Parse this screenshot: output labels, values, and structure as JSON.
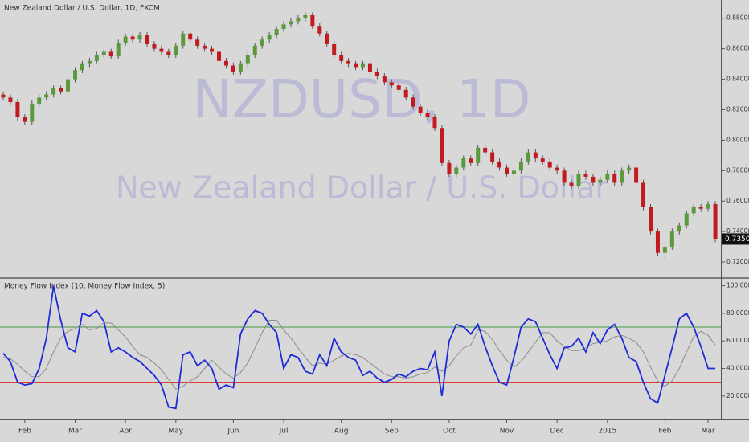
{
  "chart_data": [
    {
      "type": "candlestick",
      "title": "New Zealand Dollar / U.S. Dollar, 1D, FXCM",
      "watermark": [
        "NZDUSD, 1D",
        "New Zealand Dollar / U.S. Dollar"
      ],
      "up_color": "#5b9a3c",
      "down_color": "#c21a1f",
      "ylim": [
        0.71,
        0.892
      ],
      "yticks": [
        {
          "value": 0.72,
          "label": "0.72000"
        },
        {
          "value": 0.74,
          "label": "0.74000"
        },
        {
          "value": 0.76,
          "label": "0.76000"
        },
        {
          "value": 0.78,
          "label": "0.78000"
        },
        {
          "value": 0.8,
          "label": "0.80000"
        },
        {
          "value": 0.82,
          "label": "0.82000"
        },
        {
          "value": 0.84,
          "label": "0.84000"
        },
        {
          "value": 0.86,
          "label": "0.86000"
        },
        {
          "value": 0.88,
          "label": "0.88000"
        }
      ],
      "open": [
        0.83,
        0.828,
        0.825,
        0.815,
        0.812,
        0.824,
        0.828,
        0.83,
        0.834,
        0.832,
        0.84,
        0.846,
        0.85,
        0.852,
        0.856,
        0.858,
        0.855,
        0.864,
        0.868,
        0.866,
        0.869,
        0.863,
        0.86,
        0.858,
        0.856,
        0.862,
        0.87,
        0.866,
        0.862,
        0.86,
        0.858,
        0.852,
        0.849,
        0.845,
        0.85,
        0.856,
        0.862,
        0.866,
        0.869,
        0.873,
        0.876,
        0.878,
        0.88,
        0.882,
        0.875,
        0.87,
        0.863,
        0.856,
        0.852,
        0.85,
        0.848,
        0.85,
        0.845,
        0.842,
        0.838,
        0.836,
        0.833,
        0.828,
        0.822,
        0.818,
        0.815,
        0.808,
        0.785,
        0.778,
        0.782,
        0.788,
        0.785,
        0.795,
        0.792,
        0.786,
        0.782,
        0.778,
        0.78,
        0.786,
        0.792,
        0.788,
        0.786,
        0.782,
        0.78,
        0.772,
        0.77,
        0.778,
        0.776,
        0.772,
        0.774,
        0.778,
        0.772,
        0.78,
        0.782,
        0.772,
        0.756,
        0.74,
        0.726,
        0.73,
        0.74,
        0.744,
        0.752,
        0.756,
        0.755,
        0.758
      ],
      "high": [
        0.832,
        0.83,
        0.827,
        0.817,
        0.826,
        0.83,
        0.832,
        0.836,
        0.836,
        0.842,
        0.848,
        0.852,
        0.854,
        0.858,
        0.86,
        0.86,
        0.866,
        0.87,
        0.87,
        0.871,
        0.871,
        0.865,
        0.862,
        0.86,
        0.864,
        0.872,
        0.872,
        0.868,
        0.864,
        0.862,
        0.86,
        0.854,
        0.851,
        0.852,
        0.858,
        0.864,
        0.868,
        0.871,
        0.875,
        0.878,
        0.88,
        0.882,
        0.884,
        0.884,
        0.877,
        0.872,
        0.865,
        0.858,
        0.854,
        0.852,
        0.852,
        0.852,
        0.847,
        0.844,
        0.84,
        0.838,
        0.835,
        0.83,
        0.824,
        0.82,
        0.817,
        0.81,
        0.787,
        0.784,
        0.79,
        0.79,
        0.797,
        0.797,
        0.794,
        0.788,
        0.784,
        0.782,
        0.788,
        0.794,
        0.794,
        0.79,
        0.788,
        0.784,
        0.782,
        0.774,
        0.78,
        0.78,
        0.778,
        0.776,
        0.78,
        0.78,
        0.782,
        0.784,
        0.784,
        0.774,
        0.758,
        0.742,
        0.732,
        0.742,
        0.746,
        0.754,
        0.758,
        0.758,
        0.76,
        0.76
      ],
      "low": [
        0.826,
        0.823,
        0.813,
        0.81,
        0.81,
        0.822,
        0.826,
        0.828,
        0.83,
        0.83,
        0.838,
        0.844,
        0.848,
        0.85,
        0.854,
        0.853,
        0.853,
        0.862,
        0.864,
        0.864,
        0.861,
        0.858,
        0.856,
        0.854,
        0.854,
        0.86,
        0.864,
        0.86,
        0.858,
        0.856,
        0.85,
        0.847,
        0.843,
        0.843,
        0.848,
        0.854,
        0.86,
        0.864,
        0.867,
        0.871,
        0.874,
        0.876,
        0.878,
        0.873,
        0.868,
        0.861,
        0.854,
        0.85,
        0.848,
        0.846,
        0.846,
        0.843,
        0.84,
        0.836,
        0.834,
        0.831,
        0.826,
        0.82,
        0.816,
        0.813,
        0.806,
        0.783,
        0.776,
        0.776,
        0.78,
        0.783,
        0.783,
        0.79,
        0.784,
        0.78,
        0.776,
        0.776,
        0.778,
        0.784,
        0.786,
        0.784,
        0.78,
        0.778,
        0.77,
        0.768,
        0.768,
        0.774,
        0.77,
        0.77,
        0.772,
        0.77,
        0.77,
        0.778,
        0.77,
        0.754,
        0.738,
        0.724,
        0.722,
        0.728,
        0.738,
        0.742,
        0.75,
        0.753,
        0.753,
        0.733
      ],
      "close": [
        0.828,
        0.825,
        0.815,
        0.812,
        0.824,
        0.828,
        0.83,
        0.834,
        0.832,
        0.84,
        0.846,
        0.85,
        0.852,
        0.856,
        0.858,
        0.855,
        0.864,
        0.868,
        0.866,
        0.869,
        0.863,
        0.86,
        0.858,
        0.856,
        0.862,
        0.87,
        0.866,
        0.862,
        0.86,
        0.858,
        0.852,
        0.849,
        0.845,
        0.85,
        0.856,
        0.862,
        0.866,
        0.869,
        0.873,
        0.876,
        0.878,
        0.88,
        0.882,
        0.875,
        0.87,
        0.863,
        0.856,
        0.852,
        0.85,
        0.848,
        0.85,
        0.845,
        0.842,
        0.838,
        0.836,
        0.833,
        0.828,
        0.822,
        0.818,
        0.815,
        0.808,
        0.785,
        0.778,
        0.782,
        0.788,
        0.785,
        0.795,
        0.792,
        0.786,
        0.782,
        0.778,
        0.78,
        0.786,
        0.792,
        0.788,
        0.786,
        0.782,
        0.78,
        0.772,
        0.77,
        0.778,
        0.776,
        0.772,
        0.774,
        0.778,
        0.772,
        0.78,
        0.782,
        0.772,
        0.756,
        0.74,
        0.726,
        0.73,
        0.74,
        0.744,
        0.752,
        0.756,
        0.755,
        0.758,
        0.73508
      ]
    },
    {
      "type": "line",
      "title": "Money Flow Index (10, Money Flow Index, 5)",
      "categories": [
        null,
        null,
        null,
        "Feb",
        null,
        null,
        null,
        null,
        null,
        null,
        "Mar",
        null,
        null,
        null,
        null,
        null,
        null,
        "Apr",
        null,
        null,
        null,
        null,
        null,
        null,
        "May",
        null,
        null,
        null,
        null,
        null,
        null,
        null,
        "Jun",
        null,
        null,
        null,
        null,
        null,
        null,
        "Jul",
        null,
        null,
        null,
        null,
        null,
        null,
        null,
        "Aug",
        null,
        null,
        null,
        null,
        null,
        null,
        "Sep",
        null,
        null,
        null,
        null,
        null,
        null,
        null,
        "Oct",
        null,
        null,
        null,
        null,
        null,
        null,
        null,
        "Nov",
        null,
        null,
        null,
        null,
        null,
        null,
        "Dec",
        null,
        null,
        null,
        null,
        null,
        null,
        "2015",
        null,
        null,
        null,
        null,
        null,
        null,
        null,
        "Feb",
        null,
        null,
        null,
        null,
        null,
        "Mar",
        null
      ],
      "ylim": [
        3,
        105
      ],
      "yticks": [
        {
          "value": 20,
          "label": "20.0000"
        },
        {
          "value": 40,
          "label": "40.0000"
        },
        {
          "value": 60,
          "label": "60.0000"
        },
        {
          "value": 80,
          "label": "80.0000"
        },
        {
          "value": 100,
          "label": "100.0000"
        }
      ],
      "hlines": [
        {
          "value": 70,
          "color": "#3f9a3f"
        },
        {
          "value": 30,
          "color": "#e0251f"
        }
      ],
      "series": [
        {
          "color": "#1f2bd6",
          "values": [
            51,
            45,
            30,
            28,
            29,
            40,
            62,
            100,
            75,
            55,
            52,
            80,
            78,
            82,
            74,
            52,
            55,
            52,
            48,
            45,
            40,
            35,
            28,
            12,
            11,
            50,
            52,
            42,
            46,
            40,
            25,
            28,
            26,
            65,
            76,
            82,
            80,
            72,
            66,
            40,
            50,
            48,
            38,
            36,
            50,
            42,
            62,
            52,
            48,
            46,
            35,
            38,
            33,
            30,
            32,
            36,
            34,
            38,
            40,
            39,
            52,
            20,
            60,
            72,
            70,
            65,
            72,
            56,
            42,
            30,
            28,
            48,
            70,
            76,
            74,
            62,
            50,
            40,
            55,
            56,
            62,
            52,
            66,
            58,
            68,
            72,
            62,
            48,
            45,
            30,
            18,
            15,
            35,
            55,
            76,
            80,
            70,
            56,
            40,
            40
          ]
        },
        {
          "color": "#8c8c8c",
          "values": [
            48,
            47,
            43,
            38,
            34,
            34,
            40,
            52,
            62,
            67,
            69,
            72,
            68,
            69,
            73,
            73,
            68,
            63,
            56,
            50,
            48,
            44,
            39,
            32,
            25,
            27,
            31,
            34,
            40,
            46,
            41,
            36,
            33,
            37,
            44,
            55,
            66,
            75,
            75,
            68,
            62,
            55,
            48,
            42,
            44,
            43,
            46,
            49,
            51,
            50,
            48,
            44,
            40,
            36,
            34,
            34,
            33,
            34,
            36,
            37,
            41,
            38,
            42,
            49,
            55,
            57,
            68,
            67,
            61,
            53,
            46,
            41,
            45,
            52,
            59,
            66,
            66,
            60,
            56,
            53,
            53,
            55,
            58,
            59,
            60,
            63,
            64,
            62,
            59,
            52,
            41,
            31,
            27,
            31,
            40,
            52,
            63,
            67,
            64,
            57
          ]
        }
      ]
    }
  ]
}
